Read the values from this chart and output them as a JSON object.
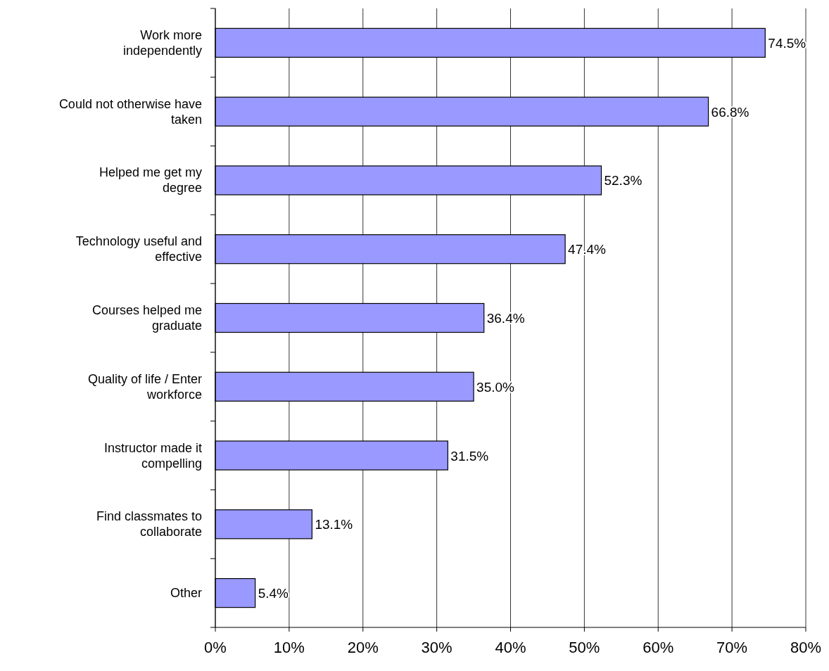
{
  "chart_data": {
    "type": "bar",
    "orientation": "horizontal",
    "categories": [
      "Work more independently",
      "Could not otherwise have taken",
      "Helped me get my degree",
      "Technology useful and effective",
      "Courses helped me graduate",
      "Quality of life / Enter workforce",
      "Instructor made it compelling",
      "Find classmates to collaborate",
      "Other"
    ],
    "values": [
      74.5,
      66.8,
      52.3,
      47.4,
      36.4,
      35.0,
      31.5,
      13.1,
      5.4
    ],
    "value_labels": [
      "74.5%",
      "66.8%",
      "52.3%",
      "47.4%",
      "36.4%",
      "35.0%",
      "31.5%",
      "13.1%",
      "5.4%"
    ],
    "color": "#9999ff",
    "xlim": [
      0,
      80
    ],
    "xticks": [
      {
        "value": 0,
        "label": "0%"
      },
      {
        "value": 10,
        "label": "10%"
      },
      {
        "value": 20,
        "label": "20%"
      },
      {
        "value": 30,
        "label": "30%"
      },
      {
        "value": 40,
        "label": "40%"
      },
      {
        "value": 50,
        "label": "50%"
      },
      {
        "value": 60,
        "label": "60%"
      },
      {
        "value": 70,
        "label": "70%"
      },
      {
        "value": 80,
        "label": "80%"
      }
    ],
    "grid": "x"
  }
}
